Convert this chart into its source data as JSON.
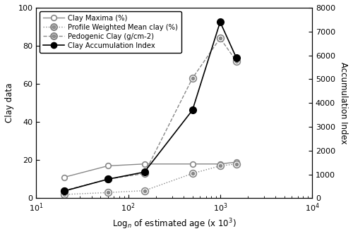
{
  "x_ages": [
    20,
    60,
    150,
    500,
    1000,
    1500
  ],
  "clay_maxima": [
    11,
    17,
    18,
    18,
    18,
    19
  ],
  "profile_weighted_mean": [
    2,
    3,
    4,
    13,
    17,
    18
  ],
  "pedogenic_clay": [
    4,
    10,
    13,
    63,
    84,
    72
  ],
  "clay_accum_index": [
    300,
    800,
    1100,
    3700,
    7400,
    5900
  ],
  "xlim": [
    10,
    10000
  ],
  "ylim_left": [
    0,
    100
  ],
  "ylim_right": [
    0,
    8000
  ],
  "yticks_left": [
    0,
    20,
    40,
    60,
    80,
    100
  ],
  "yticks_right": [
    0,
    1000,
    2000,
    3000,
    4000,
    5000,
    6000,
    7000,
    8000
  ],
  "xlabel": "Log$_{n}$ of estimated age (x 10$^{3}$)",
  "ylabel_left": "Clay data",
  "ylabel_right": "Accumulation Index",
  "legend_labels": [
    "Clay Maxima (%)",
    "Profile Weighted Mean clay (%)",
    "Pedogenic Clay (g/cm-2)",
    "Clay Accumulation Index"
  ],
  "line_color": "#888888",
  "accum_color": "#000000",
  "bg_color": "#ffffff",
  "figsize": [
    5.0,
    3.35
  ],
  "dpi": 100
}
